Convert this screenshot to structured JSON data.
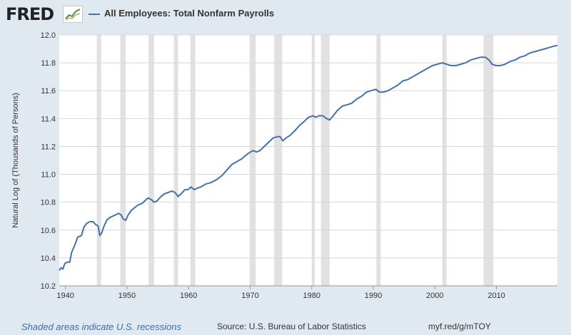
{
  "header": {
    "logo": "FRED",
    "title": "All Employees: Total Nonfarm Payrolls"
  },
  "footer": {
    "recession_note": "Shaded areas indicate U.S. recessions",
    "source": "Source: U.S. Bureau of Labor Statistics",
    "short_url": "myf.red/g/mTOY"
  },
  "colors": {
    "series": "#4572a7",
    "recession": "#e1e1e1",
    "background": "#e1e9f0",
    "plot": "#ffffff",
    "grid": "#d8d8d8"
  },
  "chart_data": {
    "type": "line",
    "title": "All Employees: Total Nonfarm Payrolls",
    "xlabel": "",
    "ylabel": "Natural Log of (Thousands of Persons)",
    "xlim": [
      1939,
      2019.9
    ],
    "ylim": [
      10.2,
      12.0
    ],
    "xticks": [
      1940,
      1950,
      1960,
      1970,
      1980,
      1990,
      2000,
      2010
    ],
    "yticks": [
      10.2,
      10.4,
      10.6,
      10.8,
      11.0,
      11.2,
      11.4,
      11.6,
      11.8,
      12.0
    ],
    "ytick_labels": [
      "10.2",
      "10.4",
      "10.6",
      "10.8",
      "11.0",
      "11.2",
      "11.4",
      "11.6",
      "11.8",
      "12.0"
    ],
    "grid": true,
    "legend": "top-left",
    "recessions": [
      [
        1945.1,
        1945.8
      ],
      [
        1948.9,
        1949.8
      ],
      [
        1953.5,
        1954.4
      ],
      [
        1957.6,
        1958.3
      ],
      [
        1960.3,
        1961.1
      ],
      [
        1969.9,
        1970.9
      ],
      [
        1973.9,
        1975.2
      ],
      [
        1980.0,
        1980.5
      ],
      [
        1981.5,
        1982.9
      ],
      [
        1990.5,
        1991.2
      ],
      [
        2001.2,
        2001.9
      ],
      [
        2007.9,
        2009.5
      ]
    ],
    "series": [
      {
        "name": "All Employees: Total Nonfarm Payrolls",
        "points": [
          [
            1939.0,
            10.31
          ],
          [
            1939.3,
            10.33
          ],
          [
            1939.6,
            10.32
          ],
          [
            1939.9,
            10.36
          ],
          [
            1940.3,
            10.37
          ],
          [
            1940.7,
            10.37
          ],
          [
            1941.0,
            10.44
          ],
          [
            1941.5,
            10.49
          ],
          [
            1942.0,
            10.55
          ],
          [
            1942.6,
            10.56
          ],
          [
            1943.0,
            10.62
          ],
          [
            1943.5,
            10.65
          ],
          [
            1944.0,
            10.66
          ],
          [
            1944.5,
            10.66
          ],
          [
            1944.9,
            10.64
          ],
          [
            1945.3,
            10.63
          ],
          [
            1945.6,
            10.56
          ],
          [
            1945.9,
            10.58
          ],
          [
            1946.2,
            10.62
          ],
          [
            1946.7,
            10.67
          ],
          [
            1947.2,
            10.69
          ],
          [
            1947.7,
            10.7
          ],
          [
            1948.2,
            10.71
          ],
          [
            1948.6,
            10.72
          ],
          [
            1949.0,
            10.71
          ],
          [
            1949.4,
            10.68
          ],
          [
            1949.8,
            10.67
          ],
          [
            1950.2,
            10.71
          ],
          [
            1950.7,
            10.74
          ],
          [
            1951.2,
            10.76
          ],
          [
            1951.8,
            10.78
          ],
          [
            1952.4,
            10.79
          ],
          [
            1952.9,
            10.81
          ],
          [
            1953.4,
            10.83
          ],
          [
            1953.9,
            10.82
          ],
          [
            1954.4,
            10.8
          ],
          [
            1954.9,
            10.81
          ],
          [
            1955.5,
            10.84
          ],
          [
            1956.1,
            10.86
          ],
          [
            1956.7,
            10.87
          ],
          [
            1957.3,
            10.88
          ],
          [
            1957.8,
            10.87
          ],
          [
            1958.3,
            10.84
          ],
          [
            1958.8,
            10.86
          ],
          [
            1959.4,
            10.89
          ],
          [
            1959.9,
            10.89
          ],
          [
            1960.4,
            10.91
          ],
          [
            1960.9,
            10.89
          ],
          [
            1961.4,
            10.9
          ],
          [
            1962.0,
            10.91
          ],
          [
            1962.8,
            10.93
          ],
          [
            1963.6,
            10.94
          ],
          [
            1964.5,
            10.96
          ],
          [
            1965.4,
            10.99
          ],
          [
            1966.2,
            11.03
          ],
          [
            1967.0,
            11.07
          ],
          [
            1967.8,
            11.09
          ],
          [
            1968.6,
            11.11
          ],
          [
            1969.4,
            11.14
          ],
          [
            1970.0,
            11.16
          ],
          [
            1970.6,
            11.17
          ],
          [
            1971.0,
            11.16
          ],
          [
            1971.6,
            11.17
          ],
          [
            1972.3,
            11.2
          ],
          [
            1973.0,
            11.23
          ],
          [
            1973.7,
            11.26
          ],
          [
            1974.4,
            11.27
          ],
          [
            1974.9,
            11.27
          ],
          [
            1975.3,
            11.24
          ],
          [
            1975.8,
            11.26
          ],
          [
            1976.5,
            11.28
          ],
          [
            1977.2,
            11.31
          ],
          [
            1978.0,
            11.35
          ],
          [
            1978.8,
            11.38
          ],
          [
            1979.5,
            11.41
          ],
          [
            1980.2,
            11.42
          ],
          [
            1980.6,
            11.41
          ],
          [
            1981.2,
            11.42
          ],
          [
            1981.8,
            11.42
          ],
          [
            1982.4,
            11.4
          ],
          [
            1982.9,
            11.39
          ],
          [
            1983.5,
            11.42
          ],
          [
            1984.2,
            11.46
          ],
          [
            1985.0,
            11.49
          ],
          [
            1985.8,
            11.5
          ],
          [
            1986.5,
            11.51
          ],
          [
            1987.3,
            11.54
          ],
          [
            1988.1,
            11.56
          ],
          [
            1988.9,
            11.59
          ],
          [
            1989.6,
            11.6
          ],
          [
            1990.4,
            11.61
          ],
          [
            1991.0,
            11.59
          ],
          [
            1991.7,
            11.59
          ],
          [
            1992.4,
            11.6
          ],
          [
            1993.2,
            11.62
          ],
          [
            1994.0,
            11.64
          ],
          [
            1994.8,
            11.67
          ],
          [
            1995.6,
            11.68
          ],
          [
            1996.4,
            11.7
          ],
          [
            1997.2,
            11.72
          ],
          [
            1998.0,
            11.74
          ],
          [
            1998.8,
            11.76
          ],
          [
            1999.6,
            11.78
          ],
          [
            2000.4,
            11.79
          ],
          [
            2001.2,
            11.8
          ],
          [
            2001.9,
            11.79
          ],
          [
            2002.6,
            11.78
          ],
          [
            2003.4,
            11.78
          ],
          [
            2004.2,
            11.79
          ],
          [
            2005.0,
            11.8
          ],
          [
            2005.8,
            11.82
          ],
          [
            2006.6,
            11.83
          ],
          [
            2007.4,
            11.84
          ],
          [
            2008.2,
            11.84
          ],
          [
            2008.8,
            11.82
          ],
          [
            2009.3,
            11.79
          ],
          [
            2009.9,
            11.78
          ],
          [
            2010.6,
            11.78
          ],
          [
            2011.4,
            11.79
          ],
          [
            2012.2,
            11.81
          ],
          [
            2013.0,
            11.82
          ],
          [
            2013.8,
            11.84
          ],
          [
            2014.6,
            11.85
          ],
          [
            2015.4,
            11.87
          ],
          [
            2016.2,
            11.88
          ],
          [
            2017.0,
            11.89
          ],
          [
            2017.8,
            11.9
          ],
          [
            2018.6,
            11.91
          ],
          [
            2019.4,
            11.92
          ],
          [
            2019.9,
            11.925
          ]
        ]
      }
    ]
  }
}
